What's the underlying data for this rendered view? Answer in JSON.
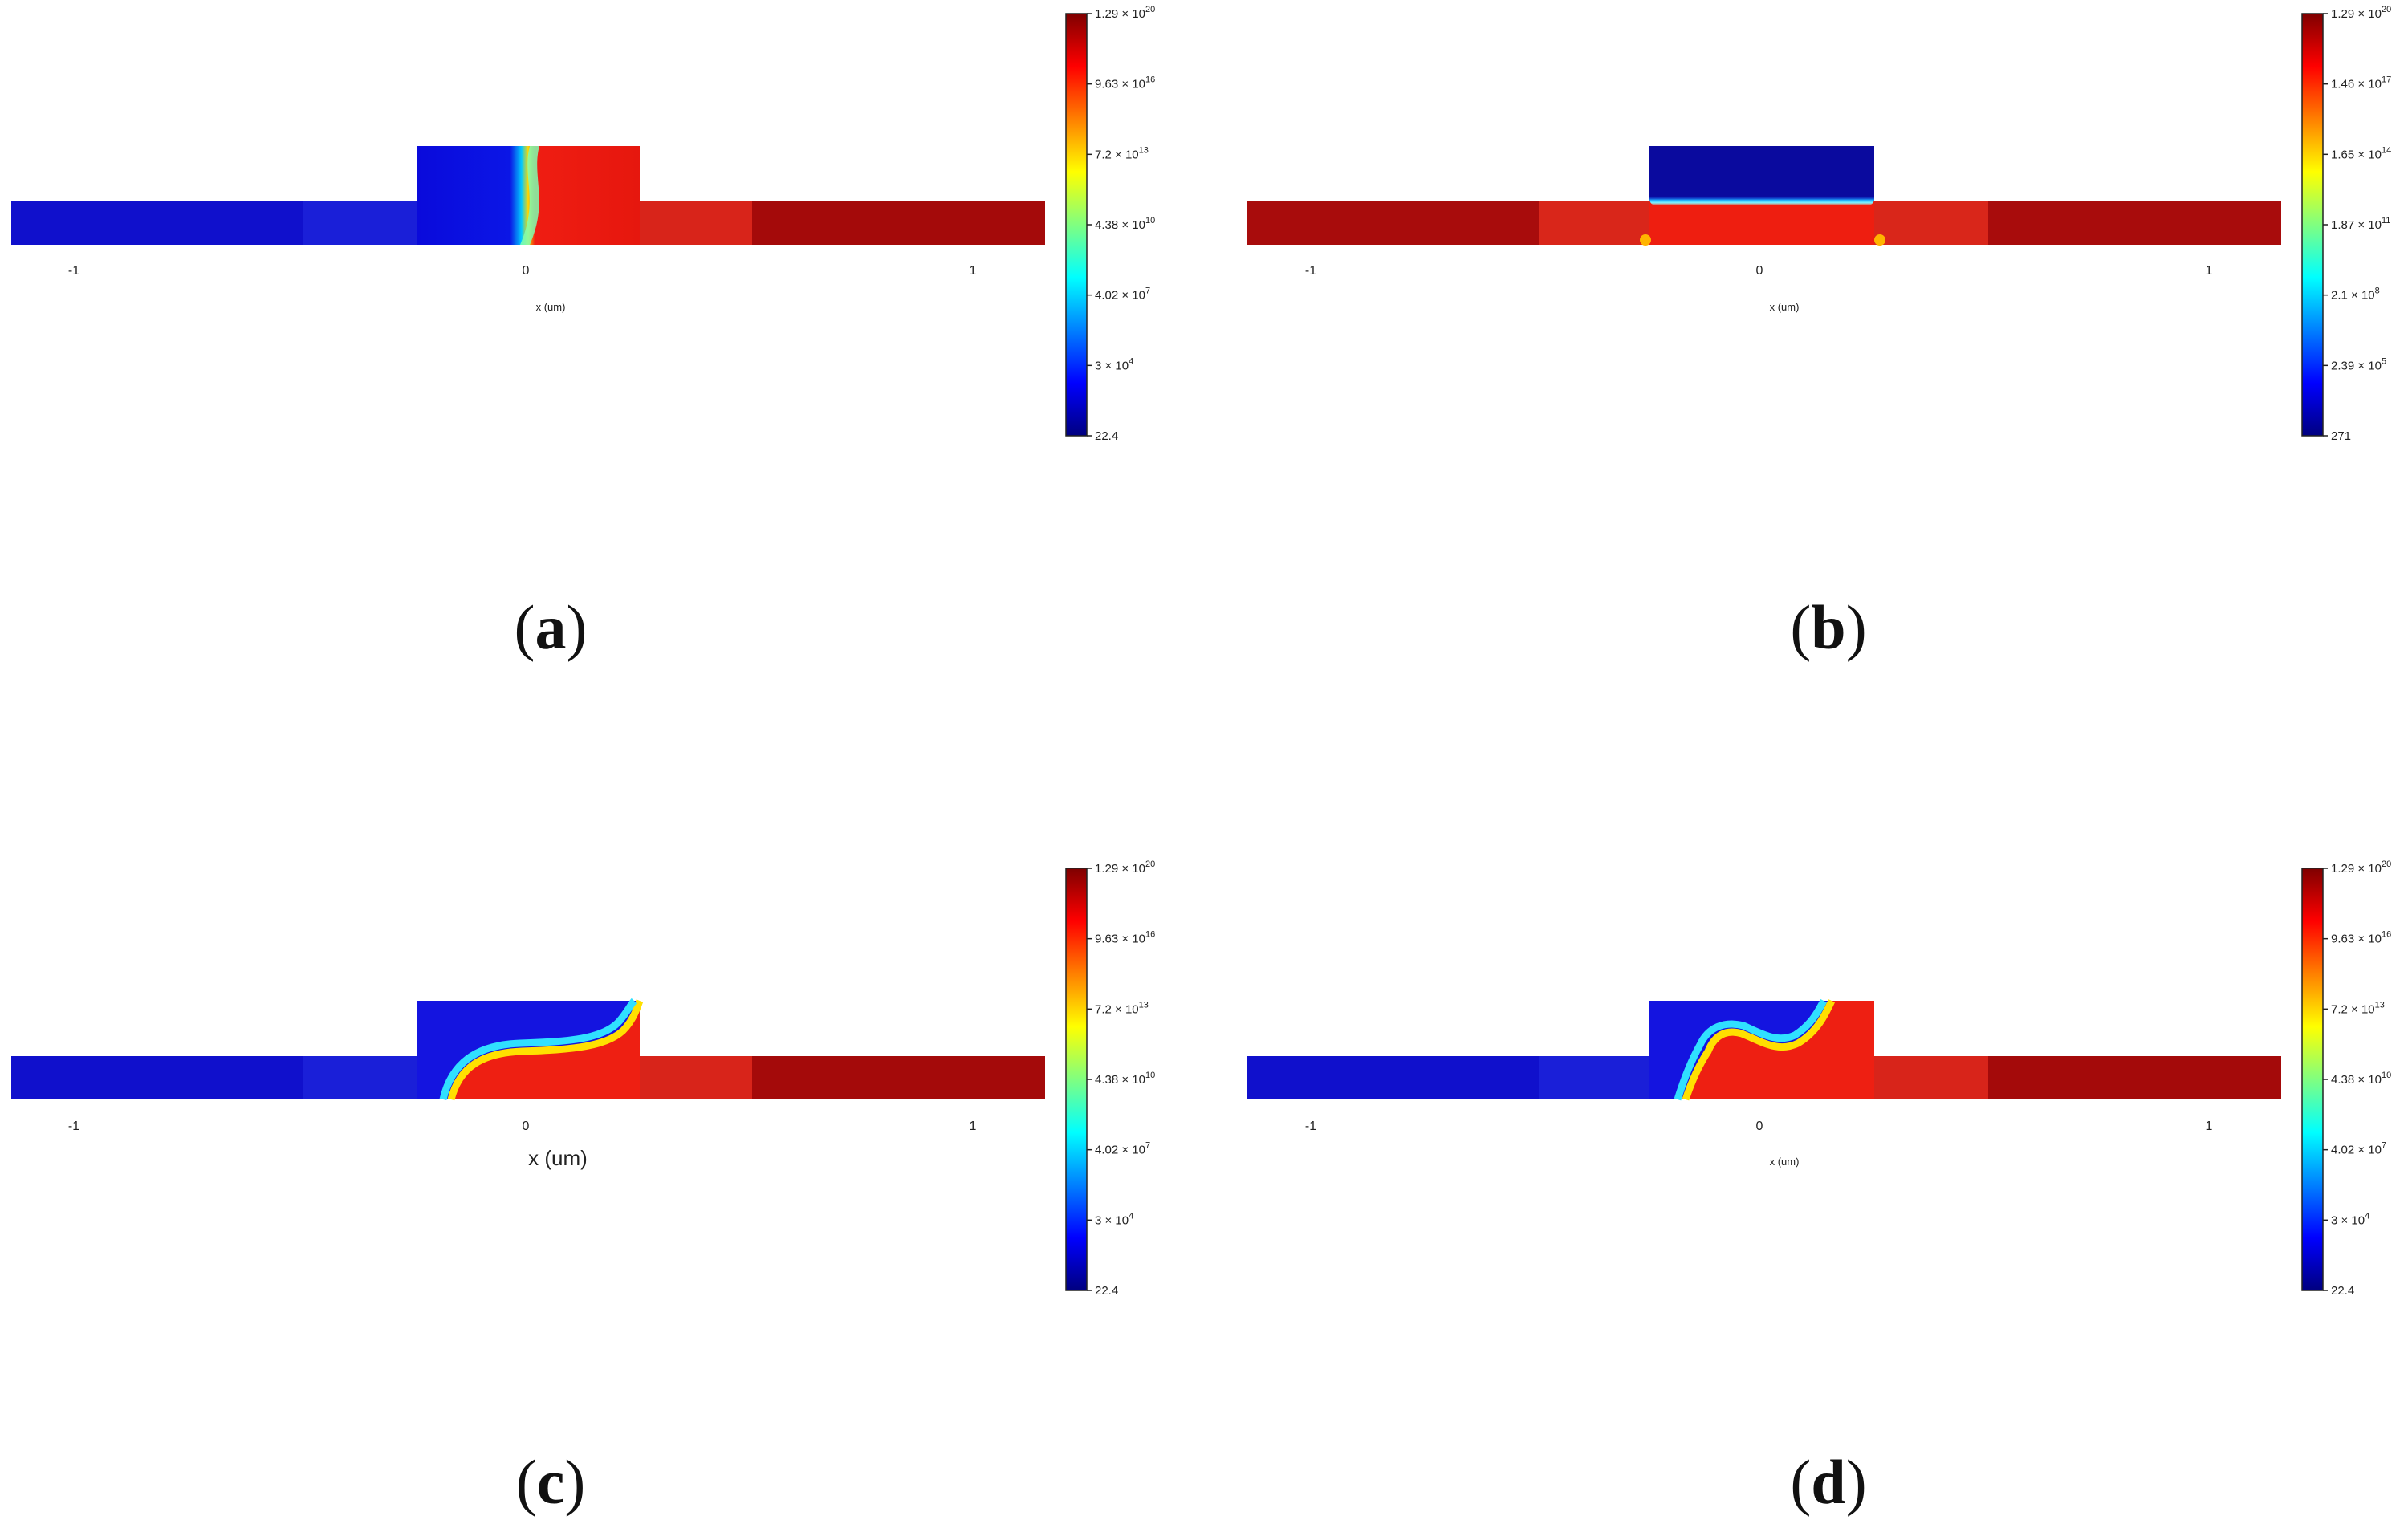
{
  "figure": {
    "panels": [
      {
        "id": "a",
        "caption": "(a)",
        "caption_letter": "a"
      },
      {
        "id": "b",
        "caption": "(b)",
        "caption_letter": "b"
      },
      {
        "id": "c",
        "caption": "(c)",
        "caption_letter": "c"
      },
      {
        "id": "d",
        "caption": "(d)",
        "caption_letter": "d"
      }
    ]
  },
  "chart_data": [
    {
      "panel": "a",
      "type": "heatmap",
      "colormap": "jet",
      "title": "",
      "xlabel": "x (um)",
      "xlim": [
        -1.15,
        1.15
      ],
      "x_ticks": [
        {
          "value": -1,
          "label": "-1"
        },
        {
          "value": 0,
          "label": "0"
        },
        {
          "value": 1,
          "label": "1"
        }
      ],
      "colorbar": {
        "scale": "log",
        "min": 22.4,
        "max": 1.29e+20,
        "tick_labels": [
          {
            "mantissa": "1.29",
            "exp": "20"
          },
          {
            "mantissa": "9.63",
            "exp": "16"
          },
          {
            "mantissa": "7.2",
            "exp": "13"
          },
          {
            "mantissa": "4.38",
            "exp": "10"
          },
          {
            "mantissa": "4.02",
            "exp": "7"
          },
          {
            "mantissa": "3",
            "exp": "4"
          },
          {
            "mantissa": "22.4",
            "exp": ""
          }
        ]
      },
      "regions": {
        "channel": {
          "x": [
            -1.15,
            1.15
          ],
          "level_mix": "left-low-right-high"
        },
        "gate_block": {
          "x": [
            -0.24,
            0.26
          ]
        },
        "boundary": "vertical front near x≈0"
      }
    },
    {
      "panel": "b",
      "type": "heatmap",
      "colormap": "jet",
      "title": "",
      "xlabel": "x (um)",
      "xlim": [
        -1.15,
        1.15
      ],
      "x_ticks": [
        {
          "value": -1,
          "label": "-1"
        },
        {
          "value": 0,
          "label": "0"
        },
        {
          "value": 1,
          "label": "1"
        }
      ],
      "colorbar": {
        "scale": "log",
        "min": 271,
        "max": 1.29e+20,
        "tick_labels": [
          {
            "mantissa": "1.29",
            "exp": "20"
          },
          {
            "mantissa": "1.46",
            "exp": "17"
          },
          {
            "mantissa": "1.65",
            "exp": "14"
          },
          {
            "mantissa": "1.87",
            "exp": "11"
          },
          {
            "mantissa": "2.1",
            "exp": "8"
          },
          {
            "mantissa": "2.39",
            "exp": "5"
          },
          {
            "mantissa": "271",
            "exp": ""
          }
        ]
      },
      "regions": {
        "channel": {
          "x": [
            -1.15,
            1.15
          ],
          "level_mix": "high"
        },
        "gate_block": {
          "x": [
            -0.24,
            0.26
          ],
          "level": "low"
        },
        "boundary": "horizontal at channel top"
      }
    },
    {
      "panel": "c",
      "type": "heatmap",
      "colormap": "jet",
      "title": "",
      "xlabel": "x (um)",
      "xlim": [
        -1.15,
        1.15
      ],
      "x_ticks": [
        {
          "value": -1,
          "label": "-1"
        },
        {
          "value": 0,
          "label": "0"
        },
        {
          "value": 1,
          "label": "1"
        }
      ],
      "colorbar": {
        "scale": "log",
        "min": 22.4,
        "max": 1.29e+20,
        "tick_labels": [
          {
            "mantissa": "1.29",
            "exp": "20"
          },
          {
            "mantissa": "9.63",
            "exp": "16"
          },
          {
            "mantissa": "7.2",
            "exp": "13"
          },
          {
            "mantissa": "4.38",
            "exp": "10"
          },
          {
            "mantissa": "4.02",
            "exp": "7"
          },
          {
            "mantissa": "3",
            "exp": "4"
          },
          {
            "mantissa": "22.4",
            "exp": ""
          }
        ]
      },
      "regions": {
        "channel": {
          "x": [
            -1.15,
            1.15
          ],
          "level_mix": "left-low-right-high"
        },
        "gate_block": {
          "x": [
            -0.24,
            0.26
          ]
        },
        "boundary": "S-curve from lower-left to upper-right"
      }
    },
    {
      "panel": "d",
      "type": "heatmap",
      "colormap": "jet",
      "title": "",
      "xlabel": "x (um)",
      "xlim": [
        -1.15,
        1.15
      ],
      "x_ticks": [
        {
          "value": -1,
          "label": "-1"
        },
        {
          "value": 0,
          "label": "0"
        },
        {
          "value": 1,
          "label": "1"
        }
      ],
      "colorbar": {
        "scale": "log",
        "min": 22.4,
        "max": 1.29e+20,
        "tick_labels": [
          {
            "mantissa": "1.29",
            "exp": "20"
          },
          {
            "mantissa": "9.63",
            "exp": "16"
          },
          {
            "mantissa": "7.2",
            "exp": "13"
          },
          {
            "mantissa": "4.38",
            "exp": "10"
          },
          {
            "mantissa": "4.02",
            "exp": "7"
          },
          {
            "mantissa": "3",
            "exp": "4"
          },
          {
            "mantissa": "22.4",
            "exp": ""
          }
        ]
      },
      "regions": {
        "channel": {
          "x": [
            -1.15,
            1.15
          ],
          "level_mix": "left-low-right-high"
        },
        "gate_block": {
          "x": [
            -0.24,
            0.26
          ]
        },
        "boundary": "wavy bump inside gate block"
      }
    }
  ]
}
